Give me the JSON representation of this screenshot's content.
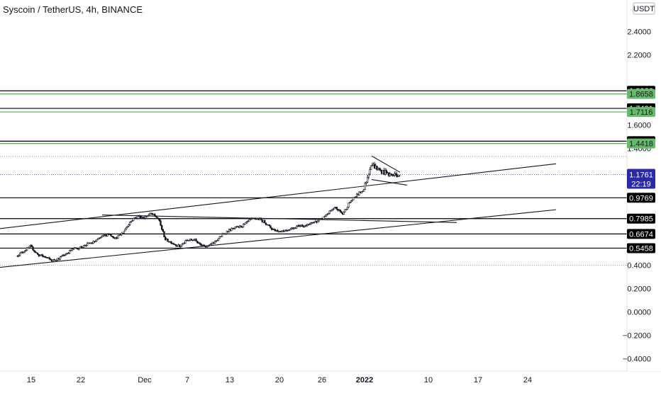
{
  "chart_data": {
    "type": "candlestick",
    "title": "Syscoin / TetherUS, 4h, BINANCE",
    "currency_label": "USDT",
    "ylim": [
      -0.45,
      2.52
    ],
    "y_ticks": [
      "2.4000",
      "2.2000",
      "1.6000",
      "1.4000",
      "0.4000",
      "0.2000",
      "0.0000",
      "−0.2000",
      "−0.4000"
    ],
    "y_tick_values": [
      2.4,
      2.2,
      1.6,
      1.4,
      0.4,
      0.2,
      0.0,
      -0.2,
      -0.4
    ],
    "x_ticks": [
      "15",
      "22",
      "Dec",
      "7",
      "13",
      "20",
      "26",
      "2022",
      "10",
      "17",
      "24"
    ],
    "x_tick_dates": [
      "2021-11-15",
      "2021-11-22",
      "2021-12-01",
      "2021-12-07",
      "2021-12-13",
      "2021-12-20",
      "2021-12-26",
      "2022-01-01",
      "2022-01-10",
      "2022-01-17",
      "2022-01-24"
    ],
    "last_price": {
      "value": 1.1761,
      "label": "1.1761",
      "countdown": "22:19"
    },
    "horizontal_levels": [
      {
        "value": 1.8926,
        "label": "1.8926",
        "color": "#000000"
      },
      {
        "value": 1.8658,
        "label": "1.8658",
        "color": "#4caf50"
      },
      {
        "value": 1.7421,
        "label": "1.7421",
        "color": "#000000"
      },
      {
        "value": 1.7116,
        "label": "1.7116",
        "color": "#4caf50"
      },
      {
        "value": 1.4614,
        "label": "1.4614",
        "color": "#000000"
      },
      {
        "value": 1.4418,
        "label": "1.4418",
        "color": "#4caf50"
      },
      {
        "value": 0.9769,
        "label": "0.9769",
        "color": "#000000"
      },
      {
        "value": 0.7985,
        "label": "0.7985",
        "color": "#000000"
      },
      {
        "value": 0.6674,
        "label": "0.6674",
        "color": "#000000"
      },
      {
        "value": 0.5458,
        "label": "0.5458",
        "color": "#000000"
      }
    ],
    "dotted_levels": [
      1.33,
      0.4
    ],
    "trendlines": [
      {
        "from": [
          "2021-11-08",
          0.695
        ],
        "to": [
          "2022-01-28",
          1.268
        ]
      },
      {
        "from": [
          "2021-11-08",
          0.365
        ],
        "to": [
          "2022-01-28",
          0.875
        ]
      },
      {
        "from": [
          "2021-11-25",
          0.83
        ],
        "to": [
          "2022-01-14",
          0.765
        ]
      },
      {
        "from": [
          "2022-01-02",
          1.335
        ],
        "to": [
          "2022-01-06",
          1.195
        ]
      },
      {
        "from": [
          "2022-01-02",
          1.133
        ],
        "to": [
          "2022-01-07",
          1.085
        ]
      }
    ],
    "price_path": [
      [
        "2021-11-13",
        0.48
      ],
      [
        "2021-11-14",
        0.52
      ],
      [
        "2021-11-15",
        0.56
      ],
      [
        "2021-11-16",
        0.49
      ],
      [
        "2021-11-17",
        0.47
      ],
      [
        "2021-11-18",
        0.44
      ],
      [
        "2021-11-19",
        0.46
      ],
      [
        "2021-11-20",
        0.5
      ],
      [
        "2021-11-21",
        0.54
      ],
      [
        "2021-11-22",
        0.55
      ],
      [
        "2021-11-23",
        0.58
      ],
      [
        "2021-11-24",
        0.6
      ],
      [
        "2021-11-25",
        0.64
      ],
      [
        "2021-11-26",
        0.67
      ],
      [
        "2021-11-27",
        0.63
      ],
      [
        "2021-11-28",
        0.68
      ],
      [
        "2021-11-29",
        0.77
      ],
      [
        "2021-11-30",
        0.82
      ],
      [
        "2021-12-01",
        0.81
      ],
      [
        "2021-12-02",
        0.84
      ],
      [
        "2021-12-03",
        0.8
      ],
      [
        "2021-12-04",
        0.62
      ],
      [
        "2021-12-05",
        0.59
      ],
      [
        "2021-12-06",
        0.56
      ],
      [
        "2021-12-07",
        0.61
      ],
      [
        "2021-12-08",
        0.62
      ],
      [
        "2021-12-09",
        0.58
      ],
      [
        "2021-12-10",
        0.56
      ],
      [
        "2021-12-11",
        0.6
      ],
      [
        "2021-12-12",
        0.66
      ],
      [
        "2021-12-13",
        0.7
      ],
      [
        "2021-12-14",
        0.72
      ],
      [
        "2021-12-15",
        0.74
      ],
      [
        "2021-12-16",
        0.79
      ],
      [
        "2021-12-17",
        0.8
      ],
      [
        "2021-12-18",
        0.77
      ],
      [
        "2021-12-19",
        0.71
      ],
      [
        "2021-12-20",
        0.69
      ],
      [
        "2021-12-21",
        0.7
      ],
      [
        "2021-12-22",
        0.72
      ],
      [
        "2021-12-23",
        0.74
      ],
      [
        "2021-12-24",
        0.74
      ],
      [
        "2021-12-25",
        0.77
      ],
      [
        "2021-12-26",
        0.79
      ],
      [
        "2021-12-27",
        0.85
      ],
      [
        "2021-12-28",
        0.89
      ],
      [
        "2021-12-29",
        0.84
      ],
      [
        "2021-12-30",
        0.94
      ],
      [
        "2021-12-31",
        1.0
      ],
      [
        "2022-01-01",
        1.05
      ],
      [
        "2022-01-02",
        1.27
      ],
      [
        "2022-01-03",
        1.22
      ],
      [
        "2022-01-04",
        1.19
      ],
      [
        "2022-01-05",
        1.17
      ],
      [
        "2022-01-06",
        1.18
      ]
    ]
  }
}
